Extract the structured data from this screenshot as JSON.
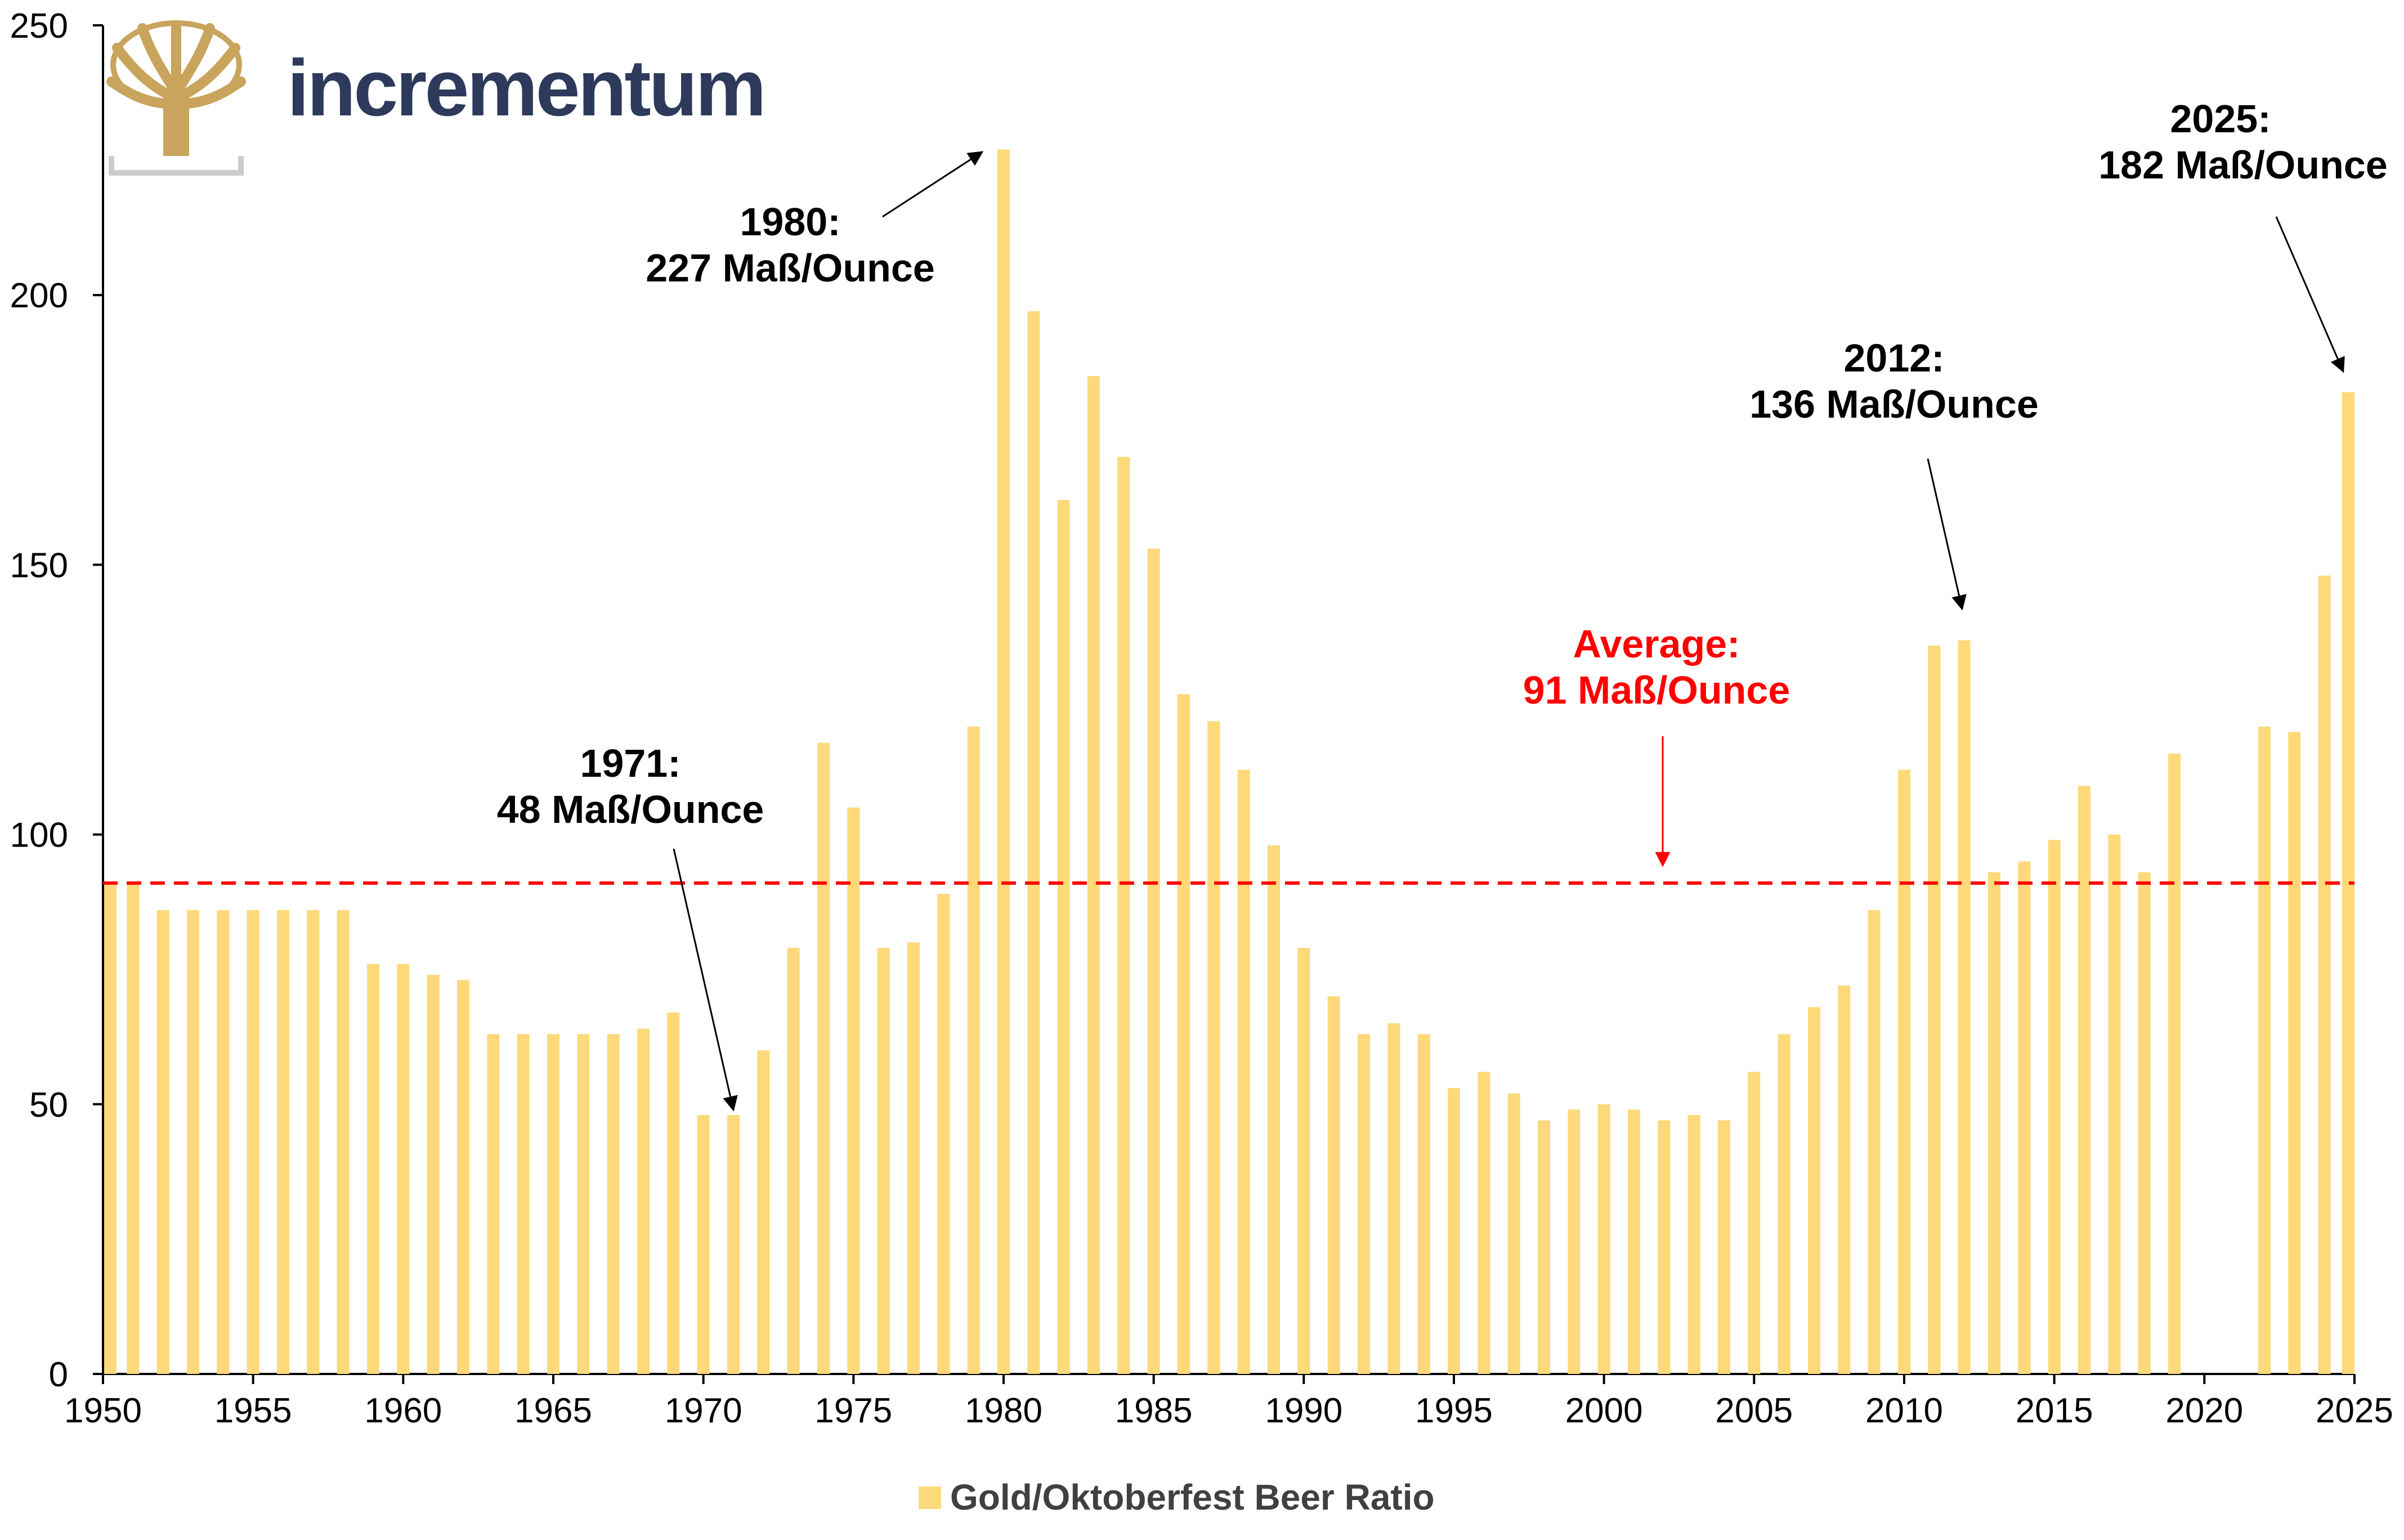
{
  "brand": {
    "name": "incrementum",
    "logo_icon": "tree-icon"
  },
  "colors": {
    "bar": "#fdd97a",
    "average_line": "#ff0000",
    "axis": "#000000",
    "brand_text": "#2d3a5c",
    "logo_gold": "#c9a45c"
  },
  "chart_data": {
    "type": "bar",
    "title": "",
    "xlabel": "",
    "ylabel": "",
    "ylim": [
      0,
      250
    ],
    "yticks": [
      0,
      50,
      100,
      150,
      200,
      250
    ],
    "xlim": [
      1950,
      2025
    ],
    "xticks": [
      1950,
      1955,
      1960,
      1965,
      1970,
      1975,
      1980,
      1985,
      1990,
      1995,
      2000,
      2005,
      2010,
      2015,
      2020,
      2025
    ],
    "grid": false,
    "legend_position": "bottom-center",
    "series": [
      {
        "name": "Gold/Oktoberfest Beer Ratio",
        "x": [
          1950,
          1951,
          1952,
          1953,
          1954,
          1955,
          1956,
          1957,
          1958,
          1959,
          1960,
          1961,
          1962,
          1963,
          1964,
          1965,
          1966,
          1967,
          1968,
          1969,
          1970,
          1971,
          1972,
          1973,
          1974,
          1975,
          1976,
          1977,
          1978,
          1979,
          1980,
          1981,
          1982,
          1983,
          1984,
          1985,
          1986,
          1987,
          1988,
          1989,
          1990,
          1991,
          1992,
          1993,
          1994,
          1995,
          1996,
          1997,
          1998,
          1999,
          2000,
          2001,
          2002,
          2003,
          2004,
          2005,
          2006,
          2007,
          2008,
          2009,
          2010,
          2011,
          2012,
          2013,
          2014,
          2015,
          2016,
          2017,
          2018,
          2019,
          2022,
          2023,
          2024,
          2025
        ],
        "values": [
          91,
          91,
          86,
          86,
          86,
          86,
          86,
          86,
          86,
          76,
          76,
          74,
          73,
          63,
          63,
          63,
          63,
          63,
          64,
          67,
          48,
          48,
          60,
          79,
          117,
          105,
          79,
          80,
          89,
          120,
          227,
          197,
          162,
          185,
          170,
          153,
          126,
          121,
          112,
          98,
          79,
          70,
          63,
          65,
          63,
          53,
          56,
          52,
          47,
          49,
          50,
          49,
          47,
          48,
          47,
          56,
          63,
          68,
          72,
          86,
          112,
          135,
          136,
          93,
          95,
          99,
          109,
          100,
          93,
          115,
          120,
          119,
          148,
          182
        ]
      }
    ],
    "reference_lines": [
      {
        "label": "Average:",
        "sublabel": "91 Maß/Ounce",
        "value": 91,
        "style": "dashed"
      }
    ],
    "annotations": [
      {
        "x": 1980,
        "y": 227,
        "line1": "1980:",
        "line2": "227 Maß/Ounce"
      },
      {
        "x": 1971,
        "y": 48,
        "line1": "1971:",
        "line2": "48 Maß/Ounce"
      },
      {
        "x": 2012,
        "y": 136,
        "line1": "2012:",
        "line2": "136 Maß/Ounce"
      },
      {
        "x": 2025,
        "y": 182,
        "line1": "2025:",
        "line2": "182 Maß/Ounce"
      }
    ]
  }
}
